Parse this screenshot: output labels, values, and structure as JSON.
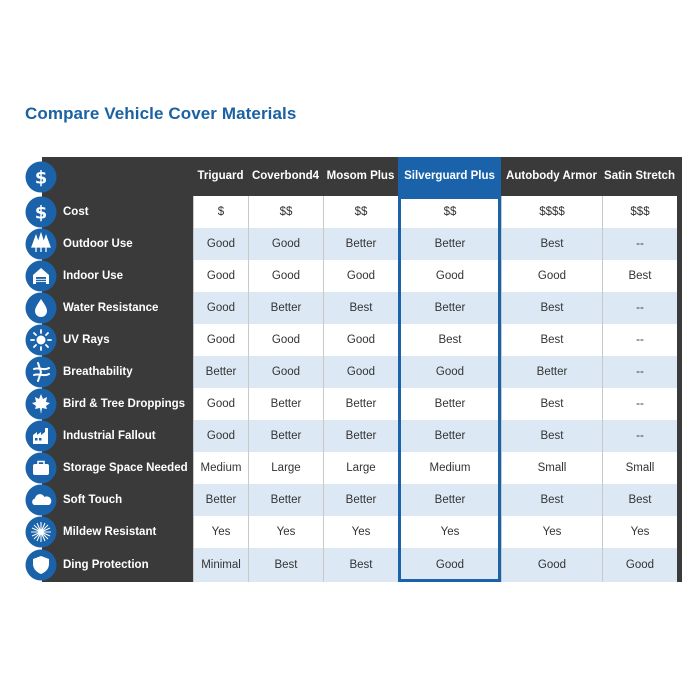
{
  "title": "Compare Vehicle Cover Materials",
  "colors": {
    "title": "#1b62a3",
    "panel": "#3a3a3a",
    "highlight": "#1a63aa",
    "alt_row": "#dce9f5",
    "icon": "#1a63aa"
  },
  "columns": [
    "Triguard",
    "Coverbond4",
    "Mosom Plus",
    "Silverguard Plus",
    "Autobody Armor",
    "Satin Stretch"
  ],
  "highlighted_column": "Silverguard Plus",
  "header_icon": "dollar-icon",
  "rows": [
    {
      "label": "Cost",
      "icon": "dollar-icon",
      "values": [
        "$",
        "$$",
        "$$",
        "$$",
        "$$$$",
        "$$$"
      ]
    },
    {
      "label": "Outdoor Use",
      "icon": "trees-icon",
      "values": [
        "Good",
        "Good",
        "Better",
        "Better",
        "Best",
        "--"
      ]
    },
    {
      "label": "Indoor Use",
      "icon": "garage-icon",
      "values": [
        "Good",
        "Good",
        "Good",
        "Good",
        "Good",
        "Best"
      ]
    },
    {
      "label": "Water Resistance",
      "icon": "water-drop-icon",
      "values": [
        "Good",
        "Better",
        "Best",
        "Better",
        "Best",
        "--"
      ]
    },
    {
      "label": "UV Rays",
      "icon": "sun-icon",
      "values": [
        "Good",
        "Good",
        "Good",
        "Best",
        "Best",
        "--"
      ]
    },
    {
      "label": "Breathability",
      "icon": "wind-icon",
      "values": [
        "Better",
        "Good",
        "Good",
        "Good",
        "Better",
        "--"
      ]
    },
    {
      "label": "Bird & Tree Droppings",
      "icon": "leaf-icon",
      "values": [
        "Good",
        "Better",
        "Better",
        "Better",
        "Best",
        "--"
      ]
    },
    {
      "label": "Industrial Fallout",
      "icon": "factory-icon",
      "values": [
        "Good",
        "Better",
        "Better",
        "Better",
        "Best",
        "--"
      ]
    },
    {
      "label": "Storage Space Needed",
      "icon": "suitcase-icon",
      "values": [
        "Medium",
        "Large",
        "Large",
        "Medium",
        "Small",
        "Small"
      ]
    },
    {
      "label": "Soft Touch",
      "icon": "cloud-icon",
      "values": [
        "Better",
        "Better",
        "Better",
        "Better",
        "Best",
        "Best"
      ]
    },
    {
      "label": "Mildew Resistant",
      "icon": "mildew-icon",
      "values": [
        "Yes",
        "Yes",
        "Yes",
        "Yes",
        "Yes",
        "Yes"
      ]
    },
    {
      "label": "Ding Protection",
      "icon": "shield-icon",
      "values": [
        "Minimal",
        "Best",
        "Best",
        "Good",
        "Good",
        "Good"
      ]
    }
  ]
}
